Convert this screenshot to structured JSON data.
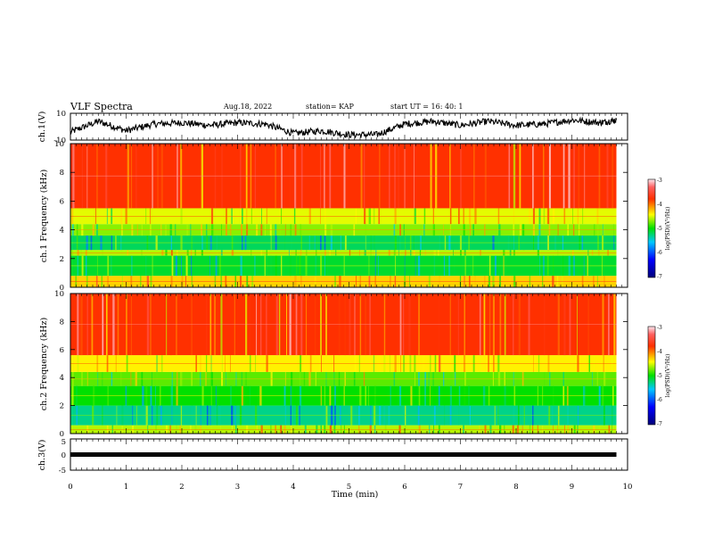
{
  "header": {
    "title": "VLF Spectra",
    "date": "Aug.18, 2022",
    "station": "station= KAP",
    "start": "start UT =   16: 40: 1"
  },
  "chart_data": [
    {
      "type": "line",
      "panel": "ch1-waveform",
      "ylabel": "ch.1(V)",
      "ylim": [
        -10,
        10
      ],
      "y_ticks": [
        "10",
        "-10"
      ],
      "x_range_min": [
        0,
        9.8
      ],
      "series": [
        {
          "x": [
            0.0,
            0.5,
            1.0,
            1.5,
            2.0,
            2.5,
            3.0,
            3.5,
            4.0,
            4.5,
            5.0,
            5.5,
            6.0,
            6.5,
            7.0,
            7.5,
            8.0,
            8.5,
            9.0,
            9.5,
            9.8
          ],
          "values": [
            -4,
            4,
            -3,
            2,
            3,
            1,
            3,
            2,
            -5,
            -3,
            -6,
            -6,
            2,
            4,
            1,
            4,
            1,
            2,
            5,
            3,
            5
          ]
        }
      ]
    },
    {
      "type": "heatmap",
      "panel": "ch1-spectrogram",
      "ylabel": "ch.1 Frequency (kHz)",
      "ylim": [
        0,
        10
      ],
      "y_ticks": [
        "0",
        "2",
        "4",
        "6",
        "8",
        "10"
      ],
      "x_range_min": [
        0,
        9.8
      ],
      "bands_khz": [
        {
          "from": 0,
          "to": 0.8,
          "level": -4.3
        },
        {
          "from": 0.8,
          "to": 2.2,
          "level": -5.1
        },
        {
          "from": 2.2,
          "to": 2.6,
          "level": -4.6
        },
        {
          "from": 2.6,
          "to": 3.6,
          "level": -5.2
        },
        {
          "from": 3.6,
          "to": 4.4,
          "level": -4.7
        },
        {
          "from": 4.4,
          "to": 5.5,
          "level": -4.5
        },
        {
          "from": 5.5,
          "to": 10,
          "level": -3.8
        }
      ]
    },
    {
      "type": "heatmap",
      "panel": "ch2-spectrogram",
      "ylabel": "ch.2 Frequency (kHz)",
      "ylim": [
        0,
        10
      ],
      "y_ticks": [
        "0",
        "2",
        "4",
        "6",
        "8",
        "10"
      ],
      "x_range_min": [
        0,
        9.8
      ],
      "bands_khz": [
        {
          "from": 0,
          "to": 0.6,
          "level": -4.6
        },
        {
          "from": 0.6,
          "to": 2.0,
          "level": -5.3
        },
        {
          "from": 2.0,
          "to": 3.4,
          "level": -5.0
        },
        {
          "from": 3.4,
          "to": 4.4,
          "level": -4.8
        },
        {
          "from": 4.4,
          "to": 5.6,
          "level": -4.4
        },
        {
          "from": 5.6,
          "to": 10,
          "level": -3.8
        }
      ]
    },
    {
      "type": "line",
      "panel": "ch3-waveform",
      "ylabel": "ch.3(V)",
      "ylim": [
        -5,
        5
      ],
      "y_ticks": [
        "5",
        "0",
        "-5"
      ],
      "x_range_min": [
        0,
        9.8
      ],
      "series": [
        {
          "x": [
            0,
            9.8
          ],
          "values": [
            0,
            0
          ]
        }
      ]
    }
  ],
  "colorbar": {
    "label": "log(PSD)(V²/Hz)",
    "range": [
      -7,
      -3
    ],
    "ticks": [
      "-3",
      "-4",
      "-5",
      "-6",
      "-7"
    ]
  },
  "x_axis": {
    "label": "Time  (min)",
    "range": [
      0,
      10
    ],
    "ticks": [
      "0",
      "1",
      "2",
      "3",
      "4",
      "5",
      "6",
      "7",
      "8",
      "9",
      "10"
    ]
  }
}
